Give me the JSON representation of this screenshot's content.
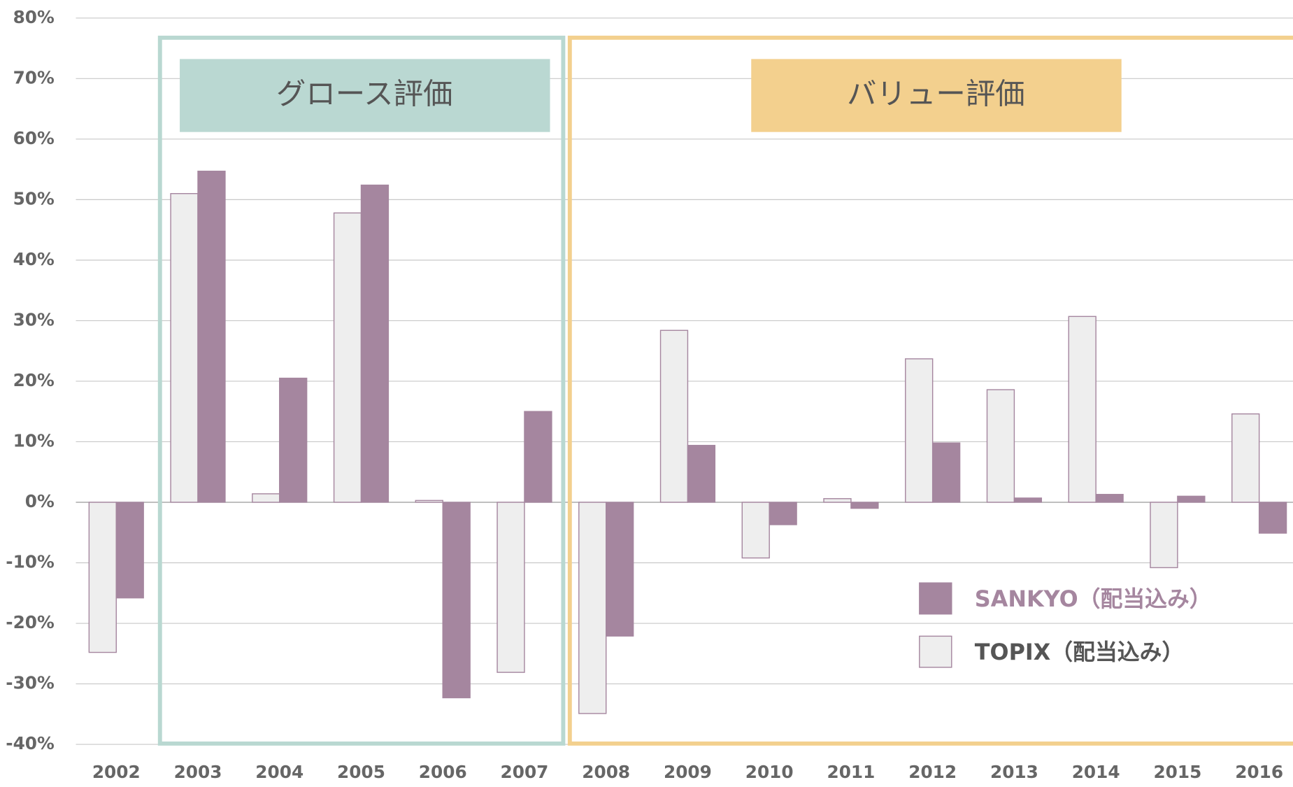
{
  "chart_data": {
    "type": "bar",
    "annotations": [
      "グロース評価",
      "バリュー評価"
    ],
    "categories": [
      "2002",
      "2003",
      "2004",
      "2005",
      "2006",
      "2007",
      "2008",
      "2009",
      "2010",
      "2011",
      "2012",
      "2013",
      "2014",
      "2015",
      "2016"
    ],
    "series": [
      {
        "name": "TOPIX（配当込み）",
        "color": "#eeeeee",
        "values": [
          -24.8,
          51.0,
          1.4,
          47.8,
          0.3,
          -28.1,
          -34.9,
          28.4,
          -9.2,
          0.6,
          23.7,
          18.6,
          30.7,
          -10.8,
          14.6
        ]
      },
      {
        "name": "SANKYO（配当込み）",
        "color": "#a5869f",
        "values": [
          -15.8,
          54.7,
          20.5,
          52.4,
          -32.3,
          15.0,
          -22.1,
          9.4,
          -3.7,
          -1.0,
          9.8,
          0.7,
          1.3,
          1.0,
          -5.1
        ]
      }
    ],
    "ylim": [
      -40,
      80
    ],
    "yticks": [
      {
        "value": -40,
        "label": "-40%"
      },
      {
        "value": -30,
        "label": "-30%"
      },
      {
        "value": -20,
        "label": "-20%"
      },
      {
        "value": -10,
        "label": "-10%"
      },
      {
        "value": 0,
        "label": "0%"
      },
      {
        "value": 10,
        "label": "10%"
      },
      {
        "value": 20,
        "label": "20%"
      },
      {
        "value": 30,
        "label": "30%"
      },
      {
        "value": 40,
        "label": "40%"
      },
      {
        "value": 50,
        "label": "50%"
      },
      {
        "value": 60,
        "label": "60%"
      },
      {
        "value": 70,
        "label": "70%"
      },
      {
        "value": 80,
        "label": "80%"
      }
    ],
    "grid": true
  }
}
